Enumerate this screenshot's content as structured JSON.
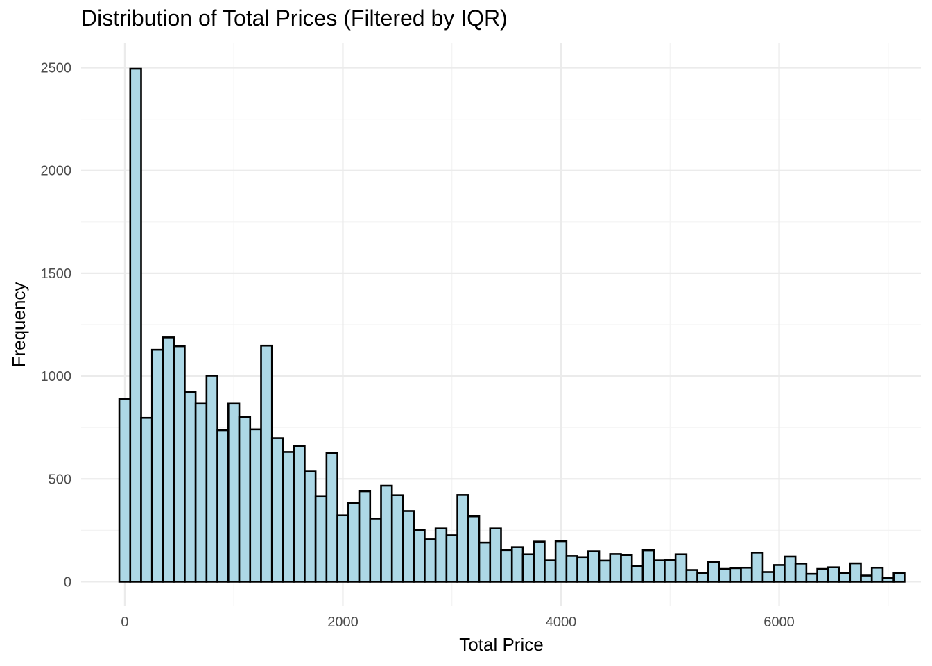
{
  "chart_data": {
    "type": "bar",
    "title": "Distribution of Total Prices (Filtered by IQR)",
    "xlabel": "Total Price",
    "ylabel": "Frequency",
    "xlim": [
      -400,
      7300
    ],
    "ylim": [
      -120,
      2620
    ],
    "x_ticks": [
      0,
      2000,
      4000,
      6000
    ],
    "x_tick_labels": [
      "0",
      "2000",
      "4000",
      "6000"
    ],
    "y_ticks": [
      0,
      500,
      1000,
      1500,
      2000,
      2500
    ],
    "y_tick_labels": [
      "0",
      "500",
      "1000",
      "1500",
      "2000",
      "2500"
    ],
    "bin_width": 100,
    "bin_start": -50,
    "values": [
      890,
      2495,
      797,
      1128,
      1188,
      1145,
      922,
      866,
      1002,
      737,
      866,
      801,
      741,
      1148,
      698,
      631,
      659,
      536,
      414,
      625,
      323,
      383,
      440,
      307,
      467,
      421,
      344,
      251,
      206,
      259,
      226,
      422,
      318,
      190,
      259,
      154,
      168,
      134,
      195,
      104,
      197,
      125,
      117,
      148,
      103,
      135,
      130,
      76,
      153,
      104,
      105,
      134,
      57,
      43,
      95,
      62,
      66,
      68,
      142,
      47,
      81,
      123,
      88,
      38,
      62,
      70,
      42,
      89,
      30,
      68,
      18,
      41
    ],
    "bar_fill": "#add8e6",
    "bar_stroke": "#000000",
    "grid": true,
    "grid_major_color": "#ebebeb",
    "grid_minor_color": "#f3f3f3"
  }
}
